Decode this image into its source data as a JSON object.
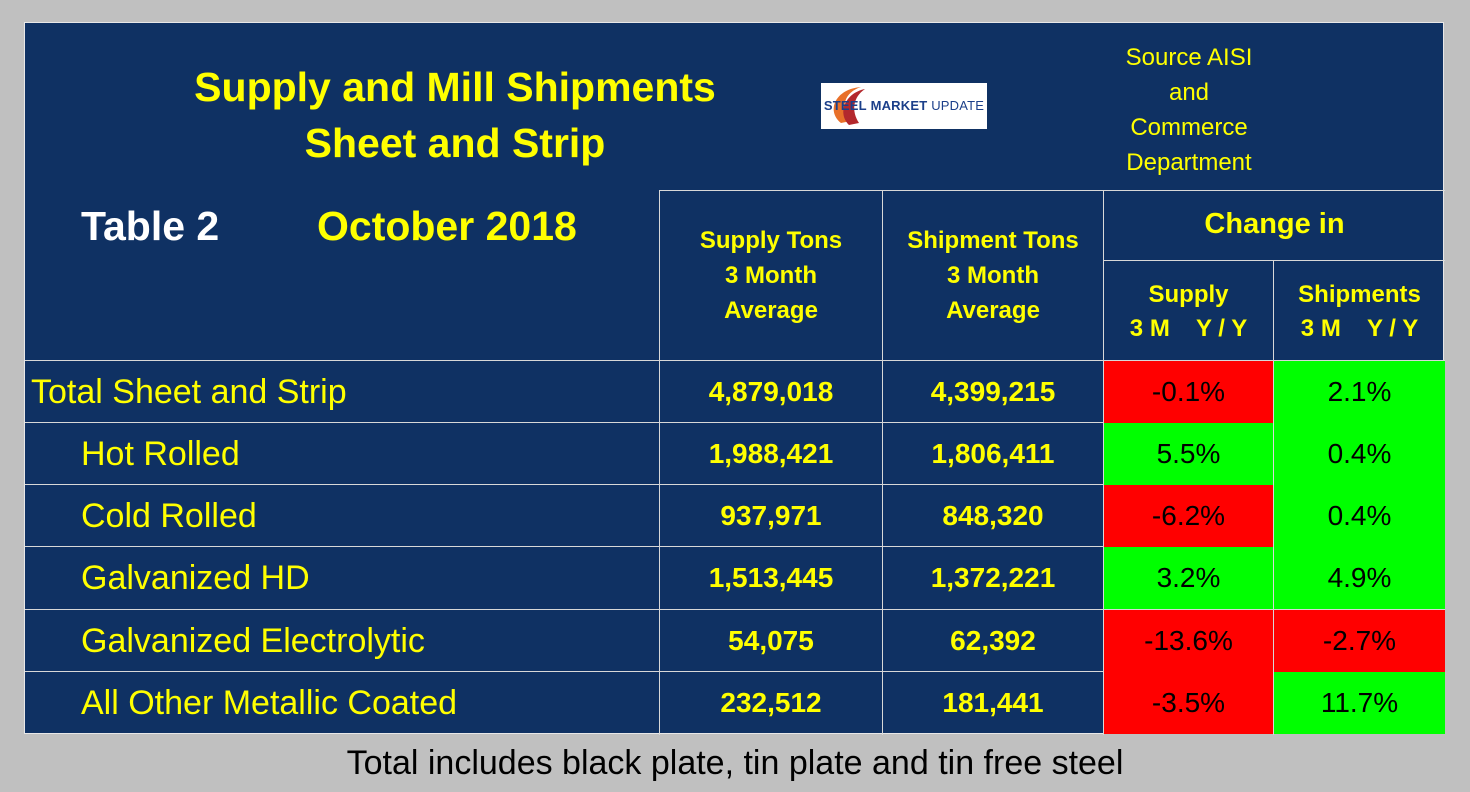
{
  "title": {
    "line1": "Supply and Mill Shipments",
    "line2": "Sheet and Strip"
  },
  "logo": {
    "brand": "STEEL",
    "rest": "MARKET",
    "tail": "UPDATE",
    "name": "steel-market-update-logo"
  },
  "source": {
    "line1": "Source AISI",
    "line2": "and",
    "line3": "Commerce",
    "line4": "Department"
  },
  "table_label": "Table 2",
  "table_date": "October 2018",
  "headers": {
    "supply_tons": [
      "Supply Tons",
      "3 Month",
      "Average"
    ],
    "shipment_tons": [
      "Shipment Tons",
      "3 Month",
      "Average"
    ],
    "change_in": "Change in",
    "change_supply": [
      "Supply",
      "3 M    Y / Y"
    ],
    "change_shipments": [
      "Shipments",
      "3 M    Y / Y"
    ]
  },
  "colors": {
    "panel": "#0f3163",
    "text_yellow": "#ffff00",
    "positive": "#00ff00",
    "negative": "#ff0000"
  },
  "rows": [
    {
      "label": "Total Sheet and Strip",
      "supply": "4,879,018",
      "shipments": "4,399,215",
      "supply_change": "-0.1%",
      "supply_change_value": -0.1,
      "ship_change": "2.1%",
      "ship_change_value": 2.1,
      "indent": false
    },
    {
      "label": "Hot Rolled",
      "supply": "1,988,421",
      "shipments": "1,806,411",
      "supply_change": "5.5%",
      "supply_change_value": 5.5,
      "ship_change": "0.4%",
      "ship_change_value": 0.4,
      "indent": true
    },
    {
      "label": "Cold Rolled",
      "supply": "937,971",
      "shipments": "848,320",
      "supply_change": "-6.2%",
      "supply_change_value": -6.2,
      "ship_change": "0.4%",
      "ship_change_value": 0.4,
      "indent": true
    },
    {
      "label": "Galvanized HD",
      "supply": "1,513,445",
      "shipments": "1,372,221",
      "supply_change": "3.2%",
      "supply_change_value": 3.2,
      "ship_change": "4.9%",
      "ship_change_value": 4.9,
      "indent": true
    },
    {
      "label": "Galvanized Electrolytic",
      "supply": "54,075",
      "shipments": "62,392",
      "supply_change": "-13.6%",
      "supply_change_value": -13.6,
      "ship_change": "-2.7%",
      "ship_change_value": -2.7,
      "indent": true
    },
    {
      "label": "All Other Metallic Coated",
      "supply": "232,512",
      "shipments": "181,441",
      "supply_change": "-3.5%",
      "supply_change_value": -3.5,
      "ship_change": "11.7%",
      "ship_change_value": 11.7,
      "indent": true
    }
  ],
  "footnote": "Total includes black plate, tin plate and tin free steel"
}
